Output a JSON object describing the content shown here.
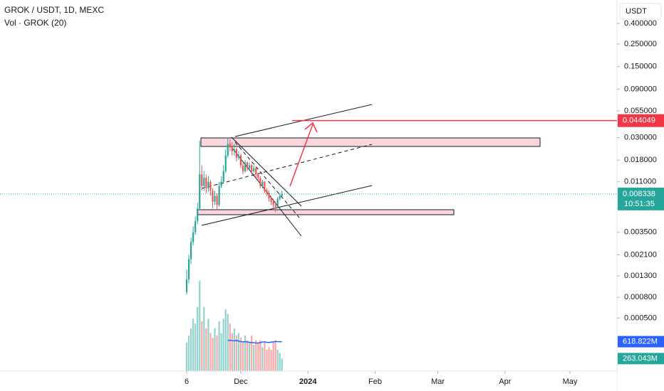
{
  "header": {
    "symbol": "GROK / USDT, 1D, MEXC",
    "indicator": "Vol · GROK (20)",
    "currency": "USDT"
  },
  "chart_data": {
    "type": "candlestick",
    "log_scale": true,
    "categories": [
      null,
      null,
      null,
      null,
      null,
      null,
      null,
      null,
      null,
      null,
      null,
      null,
      null,
      null,
      null,
      null,
      null,
      null,
      null,
      null,
      null,
      null,
      null,
      null,
      null,
      null,
      null,
      null,
      null,
      null,
      null,
      null,
      null,
      null,
      null,
      null,
      null,
      null,
      null,
      null,
      null,
      null,
      null,
      null,
      null
    ],
    "open": [
      0.0009,
      0.0012,
      0.0019,
      0.0028,
      0.0035,
      0.0045,
      0.006,
      0.013,
      0.01,
      0.012,
      0.0095,
      0.011,
      0.009,
      0.007,
      0.008,
      0.0065,
      0.01,
      0.011,
      0.014,
      0.02,
      0.026,
      0.024,
      0.022,
      0.023,
      0.019,
      0.02,
      0.016,
      0.014,
      0.017,
      0.015,
      0.016,
      0.014,
      0.015,
      0.013,
      0.012,
      0.01,
      0.011,
      0.009,
      0.0085,
      0.0075,
      0.007,
      0.0065,
      0.0062,
      0.0075,
      0.008
    ],
    "high": [
      0.0015,
      0.0021,
      0.0031,
      0.004,
      0.005,
      0.0068,
      0.028,
      0.016,
      0.014,
      0.013,
      0.0125,
      0.0115,
      0.0095,
      0.009,
      0.0085,
      0.011,
      0.0125,
      0.016,
      0.023,
      0.03,
      0.029,
      0.027,
      0.026,
      0.024,
      0.022,
      0.021,
      0.017,
      0.018,
      0.0175,
      0.017,
      0.0165,
      0.016,
      0.0155,
      0.0135,
      0.0125,
      0.0115,
      0.0112,
      0.0095,
      0.009,
      0.008,
      0.0075,
      0.007,
      0.0078,
      0.0085,
      0.009
    ],
    "low": [
      0.00085,
      0.0011,
      0.0017,
      0.0026,
      0.0033,
      0.0042,
      0.0058,
      0.009,
      0.009,
      0.0085,
      0.0088,
      0.008,
      0.006,
      0.0065,
      0.0058,
      0.0062,
      0.0095,
      0.0105,
      0.0135,
      0.019,
      0.022,
      0.02,
      0.02,
      0.0175,
      0.018,
      0.015,
      0.013,
      0.0135,
      0.014,
      0.0145,
      0.013,
      0.0135,
      0.012,
      0.011,
      0.0095,
      0.0095,
      0.0085,
      0.008,
      0.007,
      0.0065,
      0.006,
      0.0055,
      0.006,
      0.0072,
      0.0078
    ],
    "close": [
      0.0012,
      0.0019,
      0.0028,
      0.0035,
      0.0045,
      0.006,
      0.013,
      0.01,
      0.012,
      0.0095,
      0.011,
      0.009,
      0.007,
      0.008,
      0.0065,
      0.01,
      0.011,
      0.014,
      0.02,
      0.026,
      0.024,
      0.022,
      0.023,
      0.019,
      0.02,
      0.016,
      0.014,
      0.017,
      0.015,
      0.016,
      0.014,
      0.015,
      0.013,
      0.012,
      0.01,
      0.011,
      0.009,
      0.0085,
      0.0075,
      0.007,
      0.0065,
      0.0062,
      0.0075,
      0.008,
      0.008338
    ],
    "up_color": "#26a69a",
    "down_color": "#ef5350",
    "xlim": [
      -86.2,
      198.7
    ],
    "xticks": [
      {
        "value": 0,
        "label": "6"
      },
      {
        "value": 25,
        "label": "Dec"
      },
      {
        "value": 56,
        "label": "2024"
      },
      {
        "value": 87,
        "label": "Feb"
      },
      {
        "value": 116,
        "label": "Mar"
      },
      {
        "value": 147,
        "label": "Apr"
      },
      {
        "value": 177,
        "label": "May"
      }
    ],
    "ylim": [
      0.00015,
      0.68
    ],
    "yticks": [
      {
        "value": 0.4,
        "label": "0.400000"
      },
      {
        "value": 0.25,
        "label": "0.250000"
      },
      {
        "value": 0.15,
        "label": "0.150000"
      },
      {
        "value": 0.09,
        "label": "0.090000"
      },
      {
        "value": 0.055,
        "label": "0.055000"
      },
      {
        "value": 0.03,
        "label": "0.030000"
      },
      {
        "value": 0.018,
        "label": "0.018000"
      },
      {
        "value": 0.011,
        "label": "0.011000"
      },
      {
        "value": 0.0035,
        "label": "0.003500"
      },
      {
        "value": 0.0021,
        "label": "0.002100"
      },
      {
        "value": 0.0013,
        "label": "0.001300"
      },
      {
        "value": 0.0008,
        "label": "0.000800"
      },
      {
        "value": 0.0005,
        "label": "0.000500"
      }
    ],
    "y2lim": [
      0,
      7800
    ],
    "volume": {
      "axis": "y2",
      "values": [
        600,
        750,
        900,
        1100,
        1000,
        1350,
        1900,
        1050,
        1350,
        900,
        1100,
        800,
        700,
        900,
        750,
        1050,
        800,
        1100,
        1300,
        1200,
        1000,
        800,
        900,
        750,
        800,
        700,
        600,
        750,
        650,
        600,
        750,
        550,
        650,
        600,
        650,
        500,
        600,
        450,
        500,
        450,
        600,
        650,
        450,
        380,
        263.043
      ],
      "value_labels": [
        null,
        null,
        null,
        null,
        null,
        null,
        null,
        null,
        null,
        null,
        null,
        null,
        null,
        null,
        null,
        null,
        null,
        null,
        null,
        null,
        null,
        null,
        null,
        null,
        null,
        null,
        null,
        null,
        null,
        null,
        null,
        null,
        null,
        null,
        null,
        null,
        null,
        null,
        null,
        null,
        null,
        null,
        null,
        null,
        "263.043M"
      ]
    },
    "volume_ma": {
      "axis": "y2",
      "color": "#2962ff",
      "values": [
        null,
        null,
        null,
        null,
        null,
        null,
        null,
        null,
        null,
        null,
        null,
        null,
        null,
        null,
        null,
        null,
        null,
        null,
        null,
        640,
        650,
        640,
        635,
        645,
        630,
        620,
        615,
        620,
        610,
        605,
        600,
        595,
        590,
        590,
        600,
        610,
        615,
        605,
        600,
        610,
        615,
        620,
        620,
        618,
        618.822
      ],
      "value_labels": [
        null,
        null,
        null,
        null,
        null,
        null,
        null,
        null,
        null,
        null,
        null,
        null,
        null,
        null,
        null,
        null,
        null,
        null,
        null,
        null,
        null,
        null,
        null,
        null,
        null,
        null,
        null,
        null,
        null,
        null,
        null,
        null,
        null,
        null,
        null,
        null,
        null,
        null,
        null,
        null,
        null,
        null,
        null,
        null,
        "618.822M"
      ]
    },
    "last_price": 0.008338,
    "countdown": "10:51:35",
    "alert_price": 0.044049
  }
}
